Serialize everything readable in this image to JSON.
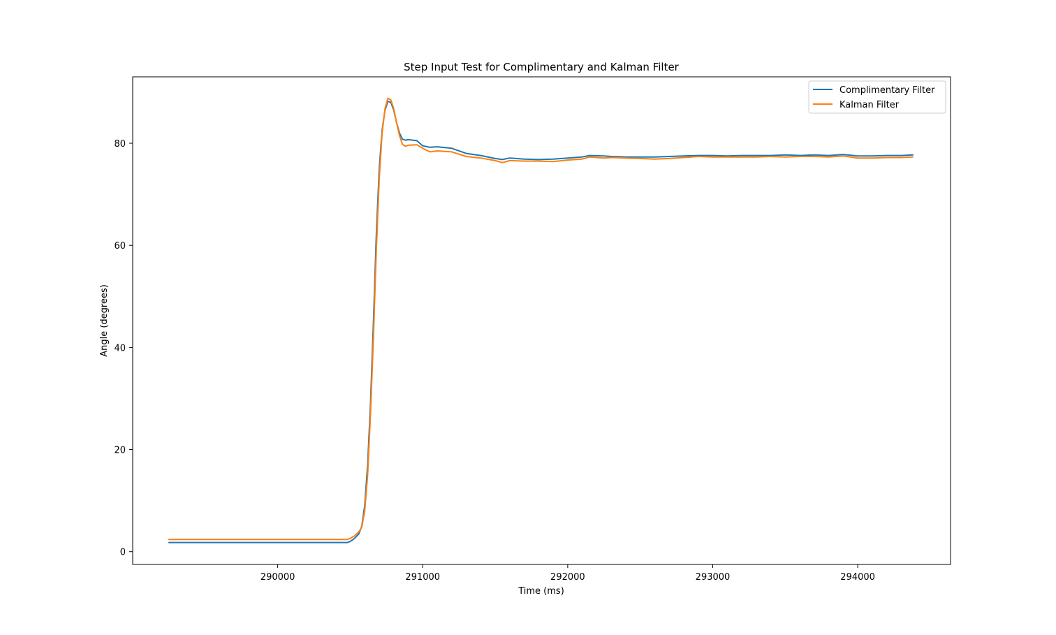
{
  "chart_data": {
    "type": "line",
    "title": "Step Input Test for Complimentary and Kalman Filter",
    "xlabel": "Time (ms)",
    "ylabel": "Angle (degrees)",
    "xlim": [
      289000,
      294640
    ],
    "ylim": [
      -2.5,
      93.0
    ],
    "xticks": [
      290000,
      291000,
      292000,
      293000,
      294000
    ],
    "yticks": [
      0,
      20,
      40,
      60,
      80
    ],
    "grid": false,
    "legend_position": "top-right",
    "series": [
      {
        "name": "Complimentary Filter",
        "color": "#1f77b4",
        "x": [
          289250,
          289600,
          290000,
          290300,
          290480,
          290500,
          290530,
          290560,
          290580,
          290600,
          290620,
          290640,
          290660,
          290680,
          290700,
          290720,
          290740,
          290760,
          290780,
          290800,
          290820,
          290840,
          290860,
          290880,
          290900,
          290960,
          291000,
          291050,
          291100,
          291200,
          291300,
          291400,
          291500,
          291550,
          291600,
          291700,
          291800,
          291900,
          292000,
          292100,
          292150,
          292250,
          292300,
          292400,
          292500,
          292600,
          292700,
          292800,
          292900,
          293000,
          293100,
          293200,
          293300,
          293400,
          293500,
          293600,
          293700,
          293800,
          293900,
          294000,
          294100,
          294200,
          294300,
          294380
        ],
        "values": [
          1.8,
          1.8,
          1.8,
          1.8,
          1.8,
          2.0,
          2.6,
          3.5,
          5.0,
          9.0,
          17.0,
          29.0,
          45.0,
          62.0,
          75.0,
          82.5,
          86.5,
          88.2,
          88.0,
          86.5,
          84.0,
          82.0,
          80.8,
          80.6,
          80.7,
          80.5,
          79.5,
          79.2,
          79.3,
          79.0,
          78.0,
          77.6,
          77.0,
          76.8,
          77.1,
          76.9,
          76.8,
          76.9,
          77.1,
          77.3,
          77.6,
          77.5,
          77.4,
          77.3,
          77.3,
          77.3,
          77.4,
          77.5,
          77.6,
          77.6,
          77.5,
          77.6,
          77.6,
          77.6,
          77.7,
          77.6,
          77.7,
          77.6,
          77.8,
          77.5,
          77.5,
          77.6,
          77.6,
          77.7
        ]
      },
      {
        "name": "Kalman Filter",
        "color": "#ff7f0e",
        "x": [
          289250,
          289600,
          290000,
          290300,
          290480,
          290500,
          290530,
          290560,
          290580,
          290600,
          290620,
          290640,
          290660,
          290680,
          290700,
          290720,
          290740,
          290760,
          290780,
          290800,
          290820,
          290840,
          290860,
          290880,
          290900,
          290960,
          291000,
          291050,
          291100,
          291200,
          291300,
          291400,
          291500,
          291550,
          291600,
          291700,
          291800,
          291900,
          292000,
          292100,
          292150,
          292250,
          292300,
          292400,
          292500,
          292600,
          292700,
          292800,
          292900,
          293000,
          293100,
          293200,
          293300,
          293400,
          293500,
          293600,
          293700,
          293800,
          293900,
          294000,
          294100,
          294200,
          294300,
          294380
        ],
        "values": [
          2.4,
          2.4,
          2.4,
          2.4,
          2.4,
          2.6,
          3.1,
          3.9,
          4.8,
          8.0,
          15.0,
          27.0,
          42.0,
          59.0,
          73.0,
          82.0,
          86.8,
          88.8,
          88.5,
          86.8,
          84.0,
          81.5,
          79.8,
          79.4,
          79.6,
          79.7,
          79.0,
          78.3,
          78.5,
          78.3,
          77.4,
          77.1,
          76.6,
          76.2,
          76.6,
          76.5,
          76.5,
          76.4,
          76.7,
          76.9,
          77.3,
          77.1,
          77.2,
          77.1,
          77.0,
          76.9,
          77.0,
          77.2,
          77.4,
          77.3,
          77.3,
          77.3,
          77.3,
          77.4,
          77.3,
          77.4,
          77.4,
          77.3,
          77.5,
          77.1,
          77.1,
          77.2,
          77.2,
          77.3
        ]
      }
    ]
  }
}
